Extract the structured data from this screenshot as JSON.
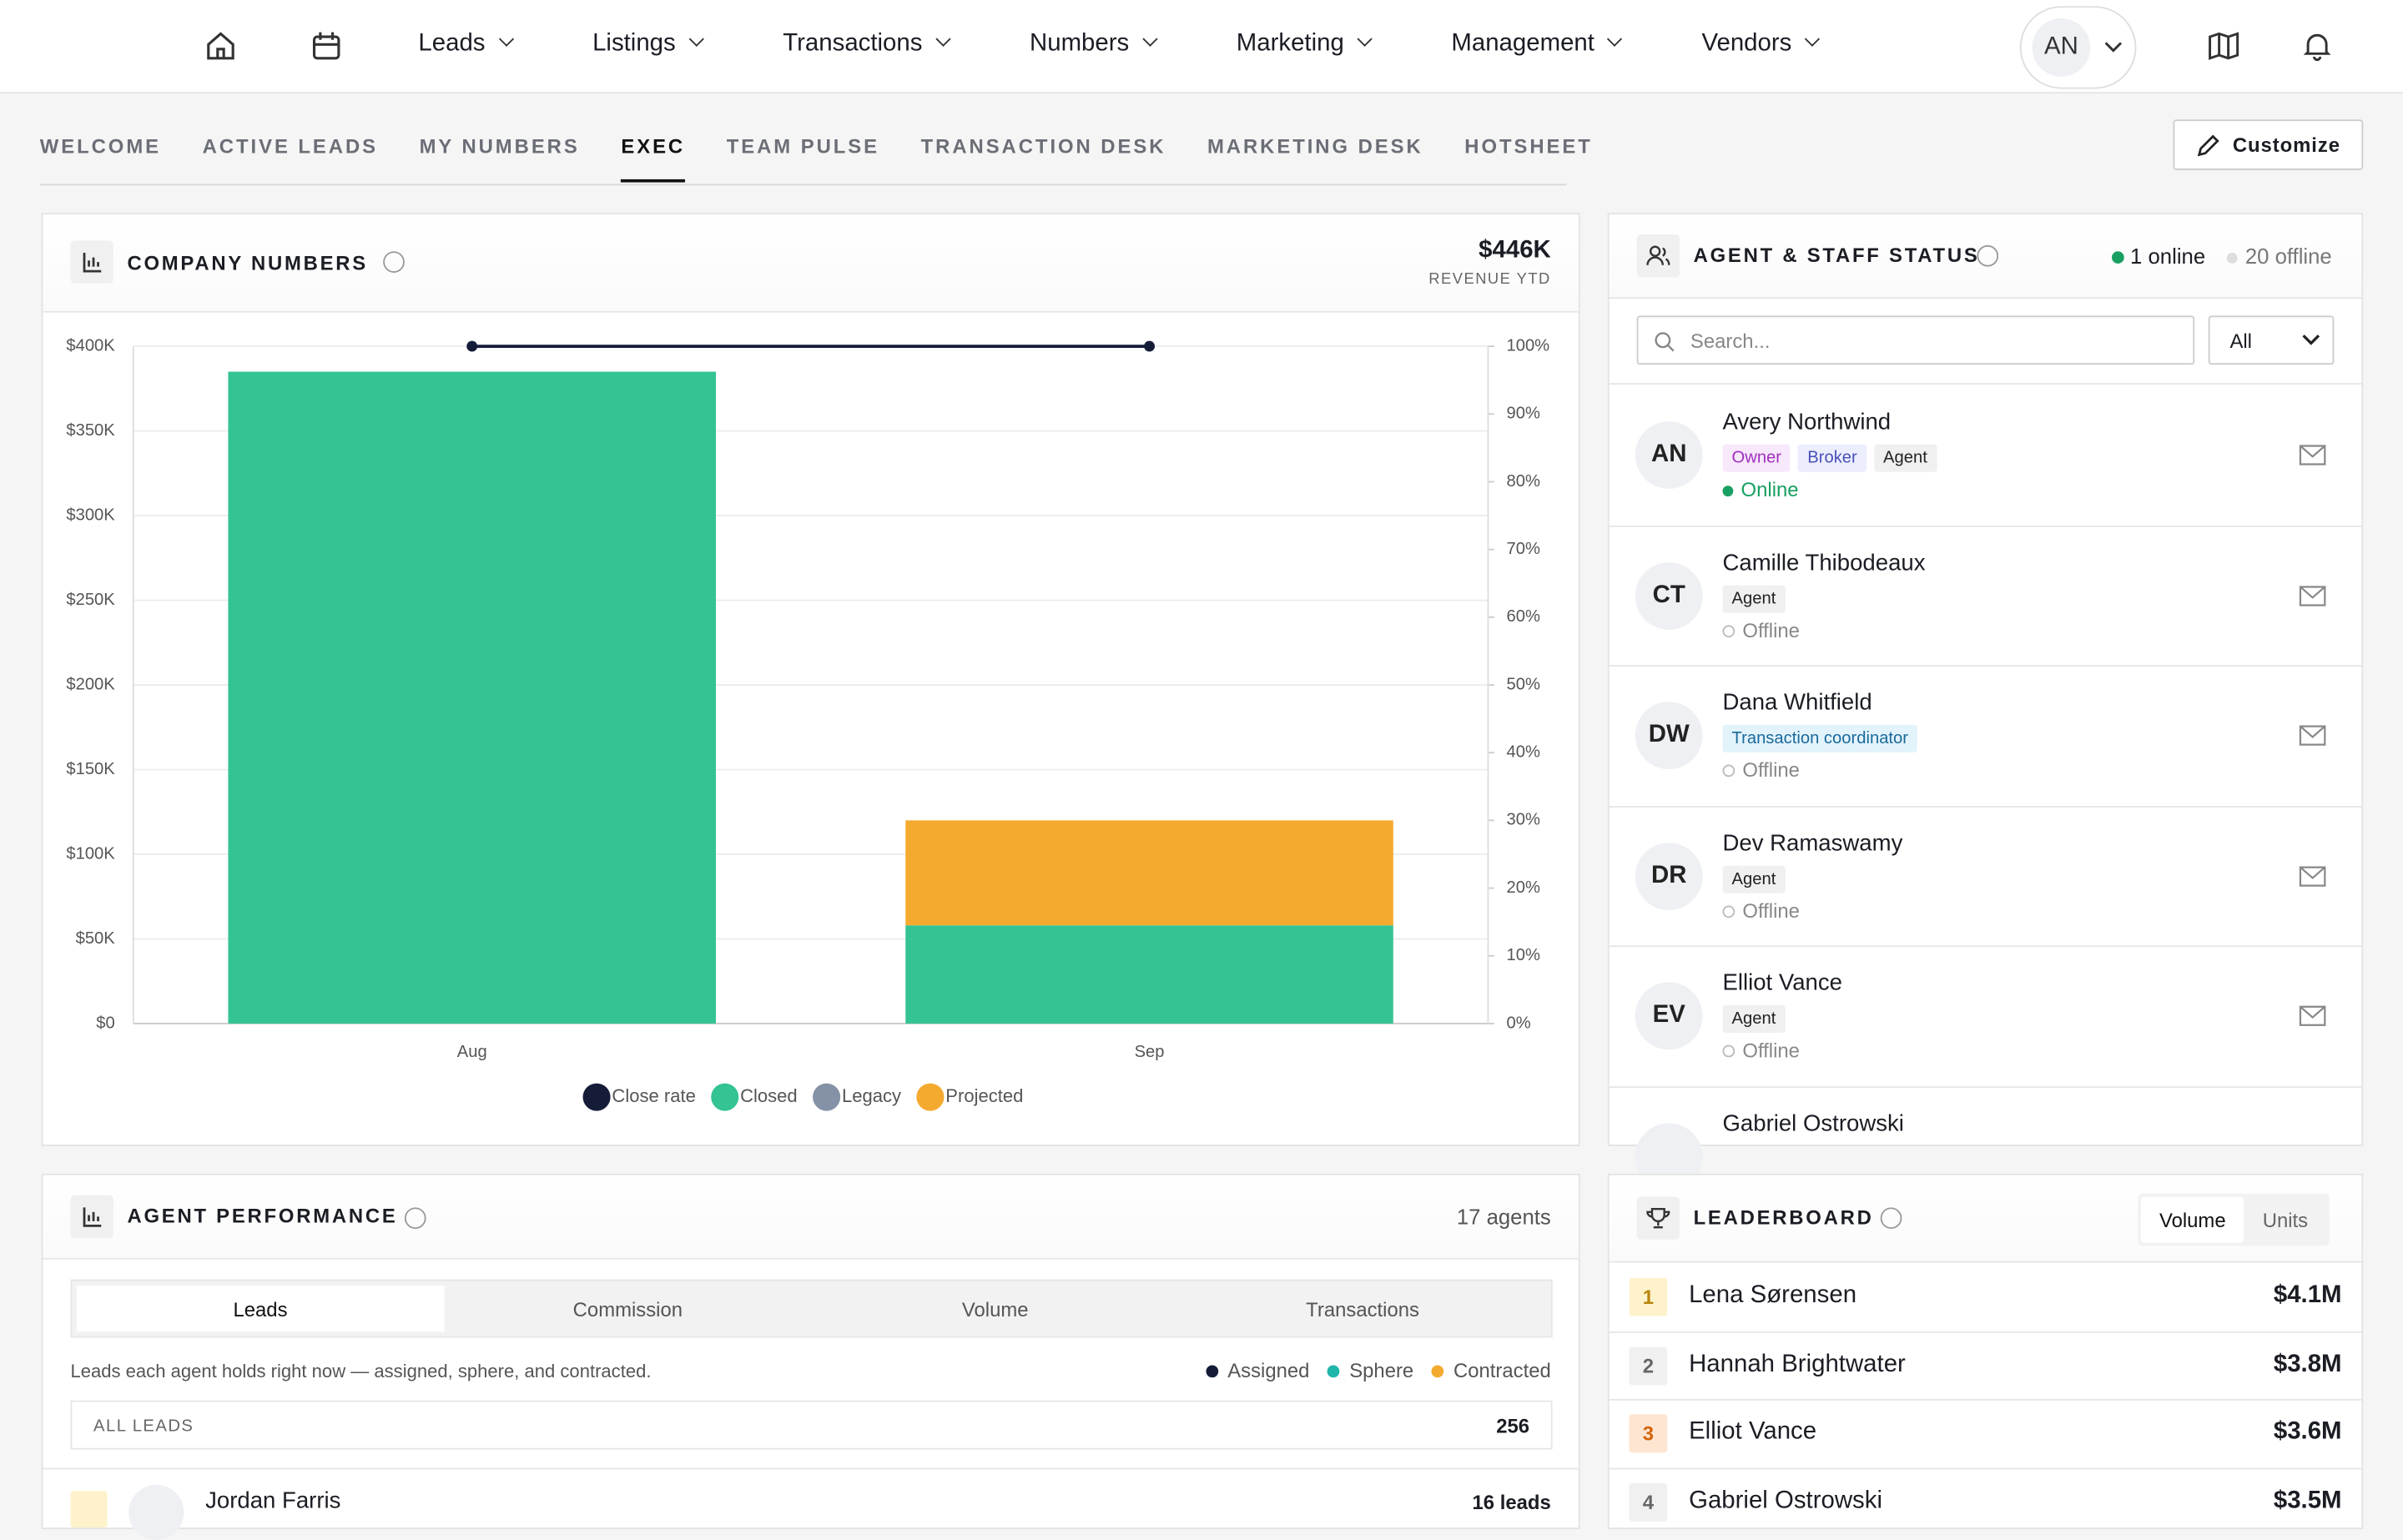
{
  "nav": {
    "items": [
      "Leads",
      "Listings",
      "Transactions",
      "Numbers",
      "Marketing",
      "Management",
      "Vendors"
    ],
    "avatar": "AN"
  },
  "tabs": {
    "items": [
      "WELCOME",
      "ACTIVE LEADS",
      "MY NUMBERS",
      "EXEC",
      "TEAM PULSE",
      "TRANSACTION DESK",
      "MARKETING DESK",
      "HOTSHEET"
    ],
    "active": 3,
    "customize": "Customize"
  },
  "company_numbers": {
    "title": "COMPANY NUMBERS",
    "total": "$446K",
    "total_label": "REVENUE YTD"
  },
  "chart_data": {
    "type": "bar",
    "categories": [
      "Aug",
      "Sep"
    ],
    "series": [
      {
        "name": "Close rate",
        "color": "#141c38",
        "type": "line",
        "axis": "y2",
        "values": [
          100,
          100
        ]
      },
      {
        "name": "Closed",
        "color": "#34c393",
        "values": [
          385000,
          58000
        ]
      },
      {
        "name": "Legacy",
        "color": "#8591a6",
        "values": [
          0,
          0
        ]
      },
      {
        "name": "Projected",
        "color": "#f4aa2f",
        "values": [
          0,
          62000
        ]
      }
    ],
    "stacked": true,
    "ylim": [
      0,
      400000
    ],
    "yticks": [
      {
        "value": 0,
        "label": "$0"
      },
      {
        "value": 50000,
        "label": "$50K"
      },
      {
        "value": 100000,
        "label": "$100K"
      },
      {
        "value": 150000,
        "label": "$150K"
      },
      {
        "value": 200000,
        "label": "$200K"
      },
      {
        "value": 250000,
        "label": "$250K"
      },
      {
        "value": 300000,
        "label": "$300K"
      },
      {
        "value": 350000,
        "label": "$350K"
      },
      {
        "value": 400000,
        "label": "$400K"
      }
    ],
    "y2lim": [
      0,
      100
    ],
    "y2ticks": [
      {
        "value": 0,
        "label": "0%"
      },
      {
        "value": 10,
        "label": "10%"
      },
      {
        "value": 20,
        "label": "20%"
      },
      {
        "value": 30,
        "label": "30%"
      },
      {
        "value": 40,
        "label": "40%"
      },
      {
        "value": 50,
        "label": "50%"
      },
      {
        "value": 60,
        "label": "60%"
      },
      {
        "value": 70,
        "label": "70%"
      },
      {
        "value": 80,
        "label": "80%"
      },
      {
        "value": 90,
        "label": "90%"
      },
      {
        "value": 100,
        "label": "100%"
      }
    ],
    "grid": true
  },
  "agent_status": {
    "title": "AGENT & STAFF STATUS",
    "online": "1 online",
    "offline": "20 offline",
    "search": "Search...",
    "filter": "All",
    "agents": [
      {
        "initials": "AN",
        "name": "Avery Northwind",
        "roles": [
          {
            "label": "Owner",
            "color": "#a030c0",
            "bg": "#f7e8fb"
          },
          {
            "label": "Broker",
            "color": "#4a50b8",
            "bg": "#eceefd"
          },
          {
            "label": "Agent",
            "color": "#222222",
            "bg": "#f0f0f0"
          }
        ],
        "status": "Online",
        "is_online": true
      },
      {
        "initials": "CT",
        "name": "Camille Thibodeaux",
        "roles": [
          {
            "label": "Agent",
            "color": "#222222",
            "bg": "#f0f0f0"
          }
        ],
        "status": "Offline",
        "is_online": false
      },
      {
        "initials": "DW",
        "name": "Dana Whitfield",
        "roles": [
          {
            "label": "Transaction coordinator",
            "color": "#1a6a9a",
            "bg": "#e3f3fc"
          }
        ],
        "status": "Offline",
        "is_online": false
      },
      {
        "initials": "DR",
        "name": "Dev Ramaswamy",
        "roles": [
          {
            "label": "Agent",
            "color": "#222222",
            "bg": "#f0f0f0"
          }
        ],
        "status": "Offline",
        "is_online": false
      },
      {
        "initials": "EV",
        "name": "Elliot Vance",
        "roles": [
          {
            "label": "Agent",
            "color": "#222222",
            "bg": "#f0f0f0"
          }
        ],
        "status": "Offline",
        "is_online": false
      },
      {
        "name": "Gabriel Ostrowski"
      }
    ]
  },
  "agent_performance": {
    "title": "AGENT PERFORMANCE",
    "count": "17 agents",
    "tabs": [
      "Leads",
      "Commission",
      "Volume",
      "Transactions"
    ],
    "active": 0,
    "description": "Leads each agent holds right now — assigned, sphere, and contracted.",
    "legend": [
      {
        "label": "Assigned",
        "color": "#141c38"
      },
      {
        "label": "Sphere",
        "color": "#1fb5a8"
      },
      {
        "label": "Contracted",
        "color": "#f4aa2f"
      }
    ],
    "all_leads": "ALL LEADS",
    "all_leads_total": 256,
    "rows": [
      {
        "name": "Jordan Farris",
        "leads": "16 leads"
      }
    ]
  },
  "leaderboard": {
    "title": "LEADERBOARD",
    "toggle": [
      "Volume",
      "Units"
    ],
    "active": 0,
    "rows": [
      {
        "rank": 1,
        "name": "Lena Sørensen",
        "value": "$4.1M",
        "color": "#b8860b",
        "bg": "#fdf2cc"
      },
      {
        "rank": 2,
        "name": "Hannah Brightwater",
        "value": "$3.8M",
        "color": "#666666",
        "bg": "#f0f0f0"
      },
      {
        "rank": 3,
        "name": "Elliot Vance",
        "value": "$3.6M",
        "color": "#d4640a",
        "bg": "#fde5d2"
      },
      {
        "rank": 4,
        "name": "Gabriel Ostrowski",
        "value": "$3.5M",
        "color": "#666666",
        "bg": "#f0f0f0"
      }
    ]
  }
}
